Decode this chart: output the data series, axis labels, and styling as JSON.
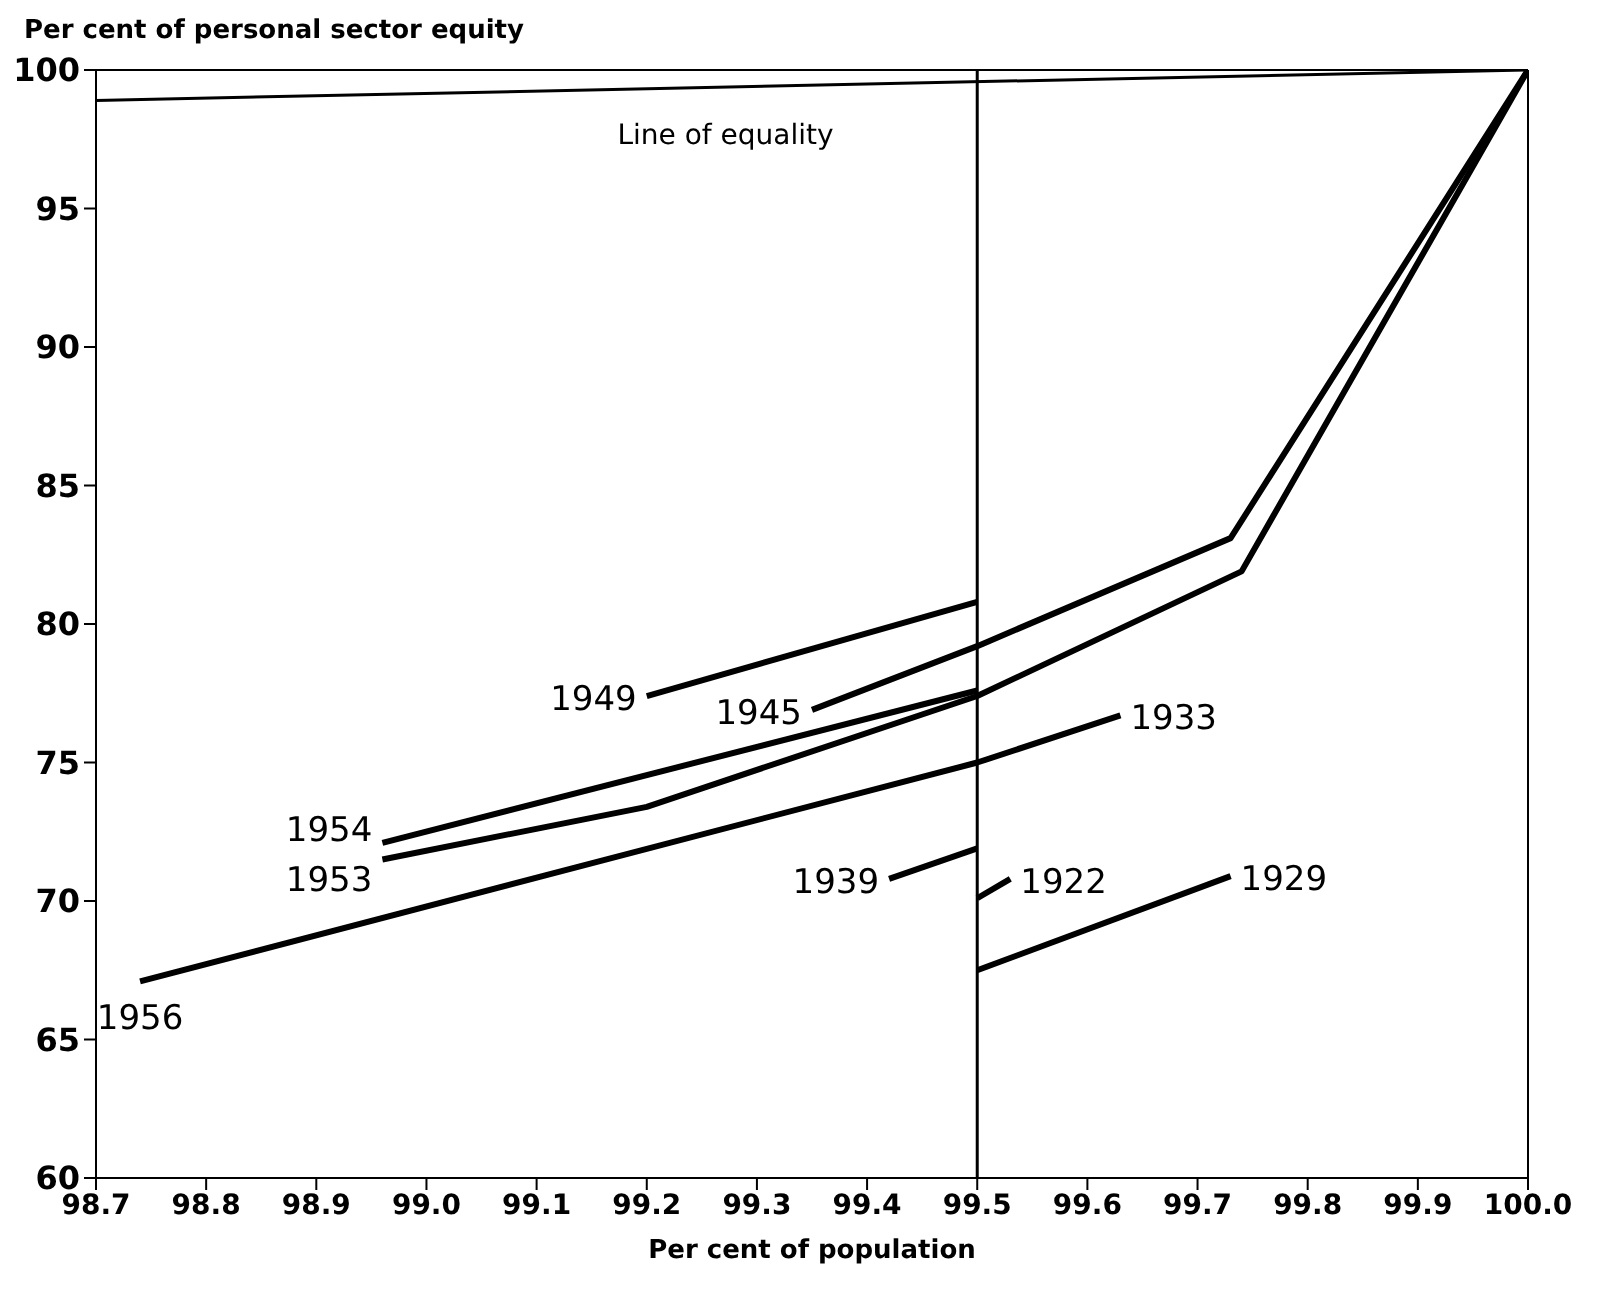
{
  "chart_data": {
    "type": "line",
    "xlabel": "Per cent of population",
    "ylabel": "Per cent of personal sector equity",
    "xlim": [
      98.7,
      100
    ],
    "xticks": [
      98.7,
      98.8,
      98.9,
      {
        "value": 99,
        "label": "99.0"
      },
      99.1,
      99.2,
      99.3,
      99.4,
      99.5,
      99.6,
      99.7,
      99.8,
      99.9,
      {
        "value": 100,
        "label": "100.0"
      }
    ],
    "ylim": [
      60,
      100
    ],
    "yticks": [
      60,
      65,
      70,
      75,
      80,
      85,
      90,
      95,
      100
    ],
    "marker": "none",
    "line_style": "solid",
    "series": [
      {
        "name": "Line of equality",
        "color": "#000000",
        "x": [
          98.7,
          100
        ],
        "values": [
          98.9,
          100
        ]
      },
      {
        "color": "#000000",
        "x": [
          99.35,
          99.5,
          99.73,
          100
        ],
        "values": [
          76.9,
          79.2,
          83.1,
          100
        ]
      },
      {
        "color": "#000000",
        "x": [
          98.96,
          99.2,
          99.5,
          99.74,
          100
        ],
        "values": [
          71.5,
          73.4,
          77.4,
          81.9,
          100
        ]
      },
      {
        "color": "#000000",
        "x": [
          98.96,
          99.5
        ],
        "values": [
          72.1,
          77.6
        ]
      },
      {
        "color": "#000000",
        "x": [
          99.2,
          99.5
        ],
        "values": [
          77.4,
          80.8
        ]
      },
      {
        "color": "#000000",
        "x": [
          98.74,
          99.5,
          99.63
        ],
        "values": [
          67.1,
          75.0,
          76.7
        ]
      },
      {
        "color": "#000000",
        "x": [
          99.42,
          99.5
        ],
        "values": [
          70.8,
          71.9
        ]
      },
      {
        "color": "#000000",
        "x": [
          99.5,
          99.53
        ],
        "values": [
          70.1,
          70.8
        ]
      },
      {
        "color": "#000000",
        "x": [
          99.5,
          99.73
        ],
        "values": [
          67.5,
          70.9
        ]
      }
    ],
    "ref_lines": [
      {
        "axis": "x",
        "value": 99.5,
        "color": "#000000"
      }
    ],
    "annotations": [
      {
        "text": "1949",
        "x": 99.2,
        "y": 77.4
      },
      {
        "text": "1945",
        "x": 99.35,
        "y": 76.9
      },
      {
        "text": "1954",
        "x": 98.96,
        "y": 72.1
      },
      {
        "text": "1953",
        "x": 98.96,
        "y": 71.5
      },
      {
        "text": "1956",
        "x": 98.74,
        "y": 67.1
      },
      {
        "text": "1939",
        "x": 99.42,
        "y": 70.8
      },
      {
        "text": "1933",
        "x": 99.63,
        "y": 76.7
      },
      {
        "text": "1922",
        "x": 99.53,
        "y": 70.8
      },
      {
        "text": "1929",
        "x": 99.73,
        "y": 70.9
      }
    ]
  }
}
